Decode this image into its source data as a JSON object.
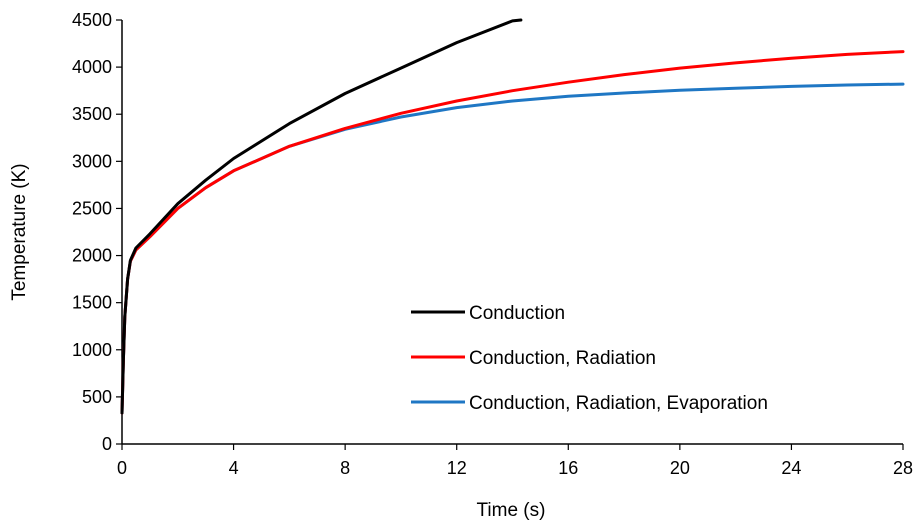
{
  "chart_data": {
    "type": "line",
    "title": "",
    "xlabel": "Time (s)",
    "ylabel": "Temperature (K)",
    "xlim": [
      0,
      28
    ],
    "ylim": [
      0,
      4500
    ],
    "xticks": [
      0,
      4,
      8,
      12,
      16,
      20,
      24,
      28
    ],
    "yticks": [
      0,
      500,
      1000,
      1500,
      2000,
      2500,
      3000,
      3500,
      4000,
      4500
    ],
    "grid": false,
    "legend_position": "bottom-center",
    "series": [
      {
        "name": "Conduction",
        "color": "#000000",
        "x": [
          0,
          0.05,
          0.1,
          0.2,
          0.3,
          0.5,
          1,
          2,
          3,
          4,
          6,
          8,
          10,
          12,
          14,
          14.3
        ],
        "y": [
          330,
          900,
          1350,
          1750,
          1950,
          2080,
          2230,
          2550,
          2800,
          3030,
          3400,
          3720,
          3990,
          4260,
          4490,
          4520
        ]
      },
      {
        "name": "Conduction, Radiation",
        "color": "#ff0000",
        "x": [
          0,
          0.05,
          0.1,
          0.2,
          0.3,
          0.5,
          1,
          2,
          3,
          4,
          6,
          8,
          10,
          12,
          14,
          16,
          18,
          20,
          22,
          24,
          26,
          28
        ],
        "y": [
          330,
          900,
          1350,
          1750,
          1940,
          2060,
          2200,
          2500,
          2720,
          2900,
          3160,
          3350,
          3510,
          3640,
          3750,
          3840,
          3920,
          3990,
          4045,
          4095,
          4135,
          4165
        ]
      },
      {
        "name": "Conduction, Radiation, Evaporation",
        "color": "#1f77c4",
        "x": [
          0,
          0.05,
          0.1,
          0.2,
          0.3,
          0.5,
          1,
          2,
          3,
          4,
          6,
          8,
          10,
          12,
          14,
          16,
          18,
          20,
          22,
          24,
          26,
          28
        ],
        "y": [
          330,
          900,
          1350,
          1750,
          1940,
          2060,
          2200,
          2500,
          2720,
          2900,
          3160,
          3340,
          3470,
          3570,
          3640,
          3690,
          3725,
          3755,
          3775,
          3795,
          3810,
          3820
        ]
      }
    ]
  }
}
